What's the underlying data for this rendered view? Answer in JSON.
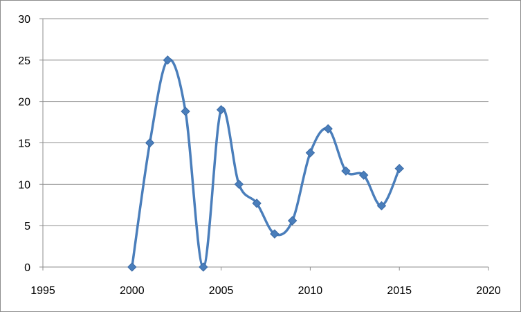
{
  "chart_data": {
    "type": "scatter",
    "title": "",
    "xlabel": "",
    "ylabel": "",
    "xlim": [
      1995,
      2020
    ],
    "ylim": [
      0,
      30
    ],
    "x_ticks": [
      1995,
      2000,
      2005,
      2010,
      2015,
      2020
    ],
    "y_ticks": [
      0,
      5,
      10,
      15,
      20,
      25,
      30
    ],
    "grid": {
      "horizontal": true,
      "vertical": false
    },
    "legend": "none",
    "smooth_lines": true,
    "marker": "diamond",
    "series": [
      {
        "color": "#4a7ebb",
        "x": [
          2000,
          2001,
          2002,
          2003,
          2004,
          2005,
          2006,
          2007,
          2008,
          2009,
          2010,
          2011,
          2012,
          2013,
          2014,
          2015
        ],
        "y": [
          0,
          15,
          25,
          18.8,
          0,
          19,
          10,
          7.7,
          4,
          5.6,
          13.8,
          16.7,
          11.6,
          11.1,
          7.4,
          11.9
        ]
      }
    ]
  }
}
